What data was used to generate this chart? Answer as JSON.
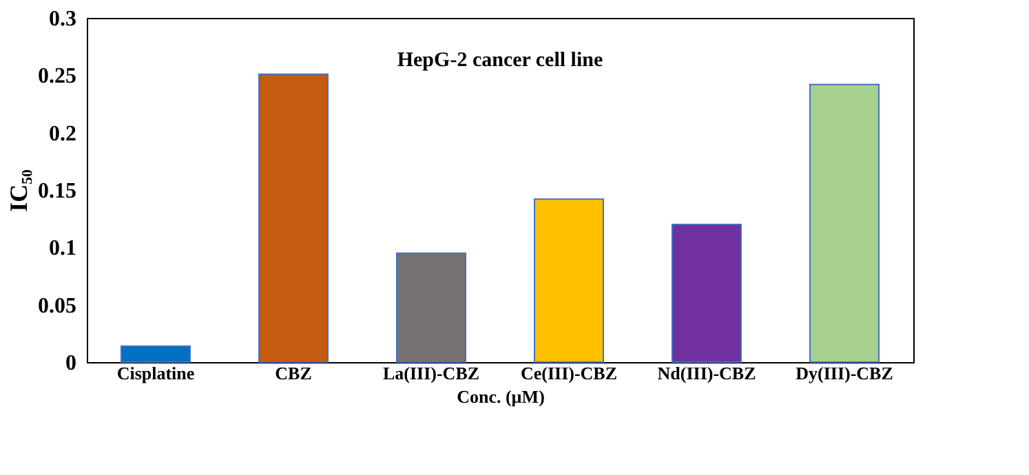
{
  "chart_data": {
    "type": "bar",
    "title": "HepG-2 cancer cell line",
    "xlabel": "Conc. (µM)",
    "ylabel": "IC₅₀",
    "categories": [
      "Cisplatine",
      "CBZ",
      "La(III)-CBZ",
      "Ce(III)-CBZ",
      "Nd(III)-CBZ",
      "Dy(III)-CBZ"
    ],
    "values": [
      0.014,
      0.251,
      0.095,
      0.142,
      0.12,
      0.242
    ],
    "colors": [
      "#0070c0",
      "#c55a11",
      "#767171",
      "#ffc000",
      "#7030a0",
      "#a9d18e"
    ],
    "ylim": [
      0,
      0.3
    ],
    "yticks": [
      0,
      0.05,
      0.1,
      0.15,
      0.2,
      0.25,
      0.3
    ],
    "grid": false
  }
}
